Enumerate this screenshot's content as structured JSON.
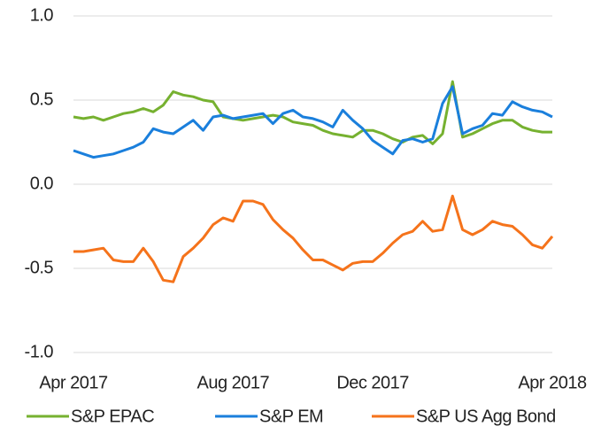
{
  "chart_data": {
    "type": "line",
    "categories": [
      "Apr 2017",
      null,
      null,
      null,
      null,
      null,
      null,
      null,
      null,
      null,
      null,
      null,
      null,
      null,
      null,
      null,
      "Aug 2017",
      null,
      null,
      null,
      null,
      null,
      null,
      null,
      null,
      null,
      null,
      null,
      null,
      null,
      "Dec 2017",
      null,
      null,
      null,
      null,
      null,
      null,
      null,
      null,
      null,
      null,
      null,
      null,
      null,
      null,
      null,
      null,
      null,
      "Apr 2018"
    ],
    "series": [
      {
        "name": "S&P EPAC",
        "color": "#76b130",
        "values": [
          0.4,
          0.39,
          0.4,
          0.38,
          0.4,
          0.42,
          0.43,
          0.45,
          0.43,
          0.47,
          0.55,
          0.53,
          0.52,
          0.5,
          0.49,
          0.4,
          0.39,
          0.38,
          0.39,
          0.4,
          0.41,
          0.4,
          0.37,
          0.36,
          0.35,
          0.32,
          0.3,
          0.29,
          0.28,
          0.32,
          0.32,
          0.3,
          0.27,
          0.25,
          0.28,
          0.29,
          0.24,
          0.3,
          0.61,
          0.28,
          0.3,
          0.33,
          0.36,
          0.38,
          0.38,
          0.34,
          0.32,
          0.31,
          0.31
        ]
      },
      {
        "name": "S&P EM",
        "color": "#1a7fdc",
        "values": [
          0.2,
          0.18,
          0.16,
          0.17,
          0.18,
          0.2,
          0.22,
          0.25,
          0.33,
          0.31,
          0.3,
          0.34,
          0.38,
          0.32,
          0.4,
          0.41,
          0.39,
          0.4,
          0.41,
          0.42,
          0.36,
          0.42,
          0.44,
          0.4,
          0.39,
          0.37,
          0.34,
          0.44,
          0.38,
          0.33,
          0.26,
          0.22,
          0.18,
          0.26,
          0.27,
          0.25,
          0.27,
          0.48,
          0.58,
          0.3,
          0.33,
          0.35,
          0.42,
          0.41,
          0.49,
          0.46,
          0.44,
          0.43,
          0.4
        ]
      },
      {
        "name": "S&P US Agg Bond",
        "color": "#f5731b",
        "values": [
          -0.4,
          -0.4,
          -0.39,
          -0.38,
          -0.45,
          -0.46,
          -0.46,
          -0.38,
          -0.46,
          -0.57,
          -0.58,
          -0.43,
          -0.38,
          -0.32,
          -0.24,
          -0.2,
          -0.22,
          -0.1,
          -0.1,
          -0.12,
          -0.21,
          -0.27,
          -0.32,
          -0.39,
          -0.45,
          -0.45,
          -0.48,
          -0.51,
          -0.47,
          -0.46,
          -0.46,
          -0.41,
          -0.35,
          -0.3,
          -0.28,
          -0.22,
          -0.28,
          -0.27,
          -0.07,
          -0.27,
          -0.3,
          -0.27,
          -0.22,
          -0.24,
          -0.25,
          -0.3,
          -0.36,
          -0.38,
          -0.31
        ]
      }
    ],
    "ylim": [
      -1.0,
      1.0
    ],
    "yticks": [
      {
        "value": -1.0,
        "label": "-1.0"
      },
      {
        "value": -0.5,
        "label": "-0.5"
      },
      {
        "value": 0.0,
        "label": "0.0"
      },
      0.5,
      {
        "value": 1.0,
        "label": "1.0"
      }
    ],
    "grid": true,
    "legend": "bottom"
  }
}
